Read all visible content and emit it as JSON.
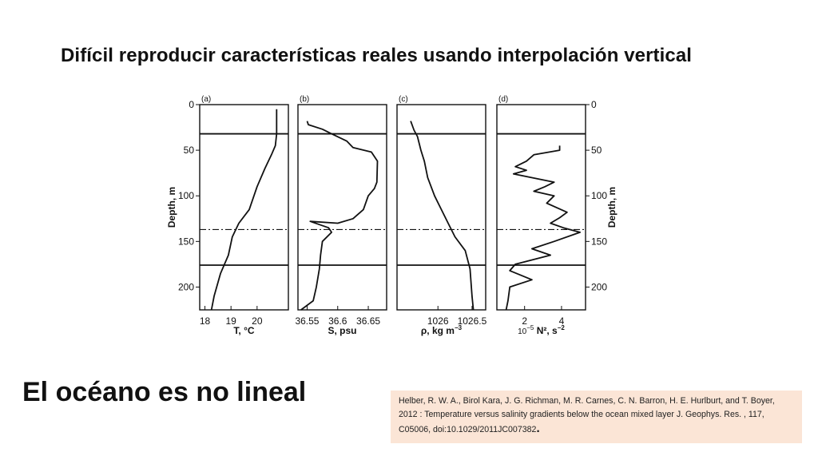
{
  "slide": {
    "title": "Difícil reproducir características reales usando interpolación vertical",
    "subtitle": "El océano es no lineal",
    "citation_text": "Helber, R. W. A., Birol Kara, J. G. Richman, M. R. Carnes, C. N. Barron, H. E. Hurlburt, and T. Boyer, 2012 : Temperature versus salinity gradients below the ocean mixed layer J. Geophys. Res. , 117, C05006, doi:10.1029/2011JC007382",
    "citation_end": "."
  },
  "chart_data": {
    "type": "line",
    "y_label": "Depth, m",
    "y_range": [
      0,
      225
    ],
    "y_ticks": [
      "0",
      "50",
      "100",
      "150",
      "200"
    ],
    "horizontal_lines": [
      {
        "depth": 32,
        "style": "solid"
      },
      {
        "depth": 137,
        "style": "dashdot"
      },
      {
        "depth": 176,
        "style": "solid"
      }
    ],
    "panels": [
      {
        "id": "a",
        "label": "(a)",
        "xlabel": "T, °C",
        "x_range": [
          17.8,
          21.2
        ],
        "x_ticks": [
          {
            "v": 18,
            "t": "18"
          },
          {
            "v": 19,
            "t": "19"
          },
          {
            "v": 20,
            "t": "20"
          }
        ],
        "points": [
          [
            20.75,
            5
          ],
          [
            20.75,
            32
          ],
          [
            20.7,
            45
          ],
          [
            20.55,
            55
          ],
          [
            20.3,
            70
          ],
          [
            20.0,
            90
          ],
          [
            19.7,
            115
          ],
          [
            19.3,
            130
          ],
          [
            19.05,
            145
          ],
          [
            18.9,
            165
          ],
          [
            18.6,
            185
          ],
          [
            18.35,
            210
          ],
          [
            18.25,
            225
          ]
        ]
      },
      {
        "id": "b",
        "label": "(b)",
        "xlabel": "S, psu",
        "x_range": [
          36.535,
          36.68
        ],
        "x_ticks": [
          {
            "v": 36.55,
            "t": "36.55"
          },
          {
            "v": 36.6,
            "t": "36.6"
          },
          {
            "v": 36.65,
            "t": "36.65"
          }
        ],
        "points": [
          [
            36.55,
            18
          ],
          [
            36.552,
            22
          ],
          [
            36.575,
            27
          ],
          [
            36.59,
            32
          ],
          [
            36.615,
            40
          ],
          [
            36.625,
            47
          ],
          [
            36.655,
            52
          ],
          [
            36.665,
            62
          ],
          [
            36.664,
            85
          ],
          [
            36.66,
            92
          ],
          [
            36.65,
            100
          ],
          [
            36.642,
            115
          ],
          [
            36.625,
            125
          ],
          [
            36.6,
            130
          ],
          [
            36.555,
            128
          ],
          [
            36.585,
            135
          ],
          [
            36.59,
            140
          ],
          [
            36.575,
            150
          ],
          [
            36.572,
            165
          ],
          [
            36.57,
            180
          ],
          [
            36.565,
            200
          ],
          [
            36.56,
            215
          ],
          [
            36.54,
            225
          ]
        ]
      },
      {
        "id": "c",
        "label": "(c)",
        "xlabel": "ρ, kg m",
        "xlabel_sup": "−3",
        "x_range": [
          1025.4,
          1026.7
        ],
        "x_ticks": [
          {
            "v": 1026,
            "t": "1026"
          },
          {
            "v": 1026.5,
            "t": "1026.5"
          }
        ],
        "points": [
          [
            1025.6,
            18
          ],
          [
            1025.65,
            28
          ],
          [
            1025.7,
            35
          ],
          [
            1025.75,
            50
          ],
          [
            1025.8,
            62
          ],
          [
            1025.85,
            80
          ],
          [
            1025.95,
            100
          ],
          [
            1026.05,
            115
          ],
          [
            1026.15,
            130
          ],
          [
            1026.25,
            145
          ],
          [
            1026.4,
            160
          ],
          [
            1026.47,
            180
          ],
          [
            1026.5,
            210
          ],
          [
            1026.52,
            225
          ]
        ]
      },
      {
        "id": "d",
        "label": "(d)",
        "xlabel": "N², s",
        "xlabel_sup": "−2",
        "x_exponent_prefix": "10",
        "x_exponent_sup": "−5",
        "x_range": [
          0.5,
          5.3
        ],
        "x_ticks": [
          {
            "v": 2,
            "t": "2"
          },
          {
            "v": 4,
            "t": "4"
          }
        ],
        "points": [
          [
            3.9,
            45
          ],
          [
            3.9,
            50
          ],
          [
            2.5,
            55
          ],
          [
            2.1,
            62
          ],
          [
            1.5,
            68
          ],
          [
            2.1,
            72
          ],
          [
            1.4,
            76
          ],
          [
            3.6,
            85
          ],
          [
            3.1,
            90
          ],
          [
            2.5,
            95
          ],
          [
            3.6,
            100
          ],
          [
            3.2,
            108
          ],
          [
            4.3,
            118
          ],
          [
            3.9,
            124
          ],
          [
            3.4,
            130
          ],
          [
            4.1,
            135
          ],
          [
            5.0,
            140
          ],
          [
            3.6,
            150
          ],
          [
            2.4,
            158
          ],
          [
            3.4,
            165
          ],
          [
            1.5,
            175
          ],
          [
            1.2,
            182
          ],
          [
            2.4,
            192
          ],
          [
            1.2,
            200
          ],
          [
            1.1,
            215
          ],
          [
            1.0,
            225
          ]
        ]
      }
    ]
  }
}
